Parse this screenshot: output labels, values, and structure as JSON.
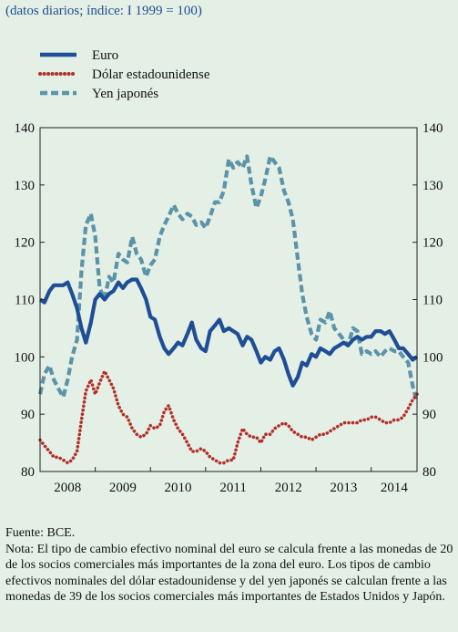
{
  "subtitle": "(datos diarios; índice: I 1999 = 100)",
  "source": "Fuente: BCE.",
  "note": "Nota: El tipo de cambio efectivo nominal del euro se calcula frente a las monedas de 20 de los socios comerciales más importantes de la zona del euro. Los tipos de cambio efectivos nominales del dólar estadounidense y del yen japonés se calculan frente a las monedas de 39 de los socios comerciales más importantes de Estados Unidos y Japón.",
  "colors": {
    "euro": "#1f4e96",
    "usd": "#b3302a",
    "yen": "#5b93a8",
    "background": "#e4efe6"
  },
  "chart_data": {
    "type": "line",
    "title": "",
    "ylim": [
      80,
      140
    ],
    "yticks": [
      80,
      90,
      100,
      110,
      120,
      130,
      140
    ],
    "xlim": [
      2008.0,
      2014.83
    ],
    "xtick_labels": [
      "2008",
      "2009",
      "2010",
      "2011",
      "2012",
      "2013",
      "2014"
    ],
    "grid": false,
    "legend_position": "top-left",
    "series": [
      {
        "name": "Euro",
        "style": "solid",
        "color": "#1f4e96",
        "x": [
          2008.0,
          2008.08,
          2008.17,
          2008.25,
          2008.33,
          2008.42,
          2008.5,
          2008.58,
          2008.67,
          2008.75,
          2008.83,
          2008.92,
          2009.0,
          2009.08,
          2009.17,
          2009.25,
          2009.33,
          2009.42,
          2009.5,
          2009.58,
          2009.67,
          2009.75,
          2009.83,
          2009.92,
          2010.0,
          2010.08,
          2010.17,
          2010.25,
          2010.33,
          2010.42,
          2010.5,
          2010.58,
          2010.67,
          2010.75,
          2010.83,
          2010.92,
          2011.0,
          2011.08,
          2011.17,
          2011.25,
          2011.33,
          2011.42,
          2011.5,
          2011.58,
          2011.67,
          2011.75,
          2011.83,
          2011.92,
          2012.0,
          2012.08,
          2012.17,
          2012.25,
          2012.33,
          2012.42,
          2012.5,
          2012.58,
          2012.67,
          2012.75,
          2012.83,
          2012.92,
          2013.0,
          2013.08,
          2013.17,
          2013.25,
          2013.33,
          2013.42,
          2013.5,
          2013.58,
          2013.67,
          2013.75,
          2013.83,
          2013.92,
          2014.0,
          2014.08,
          2014.17,
          2014.25,
          2014.33,
          2014.42,
          2014.5,
          2014.58,
          2014.67,
          2014.75,
          2014.83
        ],
        "y": [
          110,
          109.5,
          111.5,
          112.5,
          112.5,
          112.5,
          113,
          111,
          108.5,
          105,
          102.5,
          106,
          110,
          111,
          110,
          111,
          111.5,
          113,
          112,
          113,
          113.5,
          113.5,
          112,
          110,
          107,
          106.5,
          103.5,
          101.5,
          100.5,
          101.5,
          102.5,
          102,
          104,
          106,
          103,
          101.5,
          101,
          104.5,
          105.5,
          106.5,
          104.5,
          105,
          104.5,
          104,
          102,
          103.5,
          103,
          101,
          99,
          100,
          99.5,
          101,
          101.5,
          99.5,
          97,
          95,
          96.5,
          99,
          98.5,
          100.5,
          100,
          101.5,
          101,
          100.5,
          101.5,
          102,
          102.5,
          102,
          103,
          103.5,
          103,
          103.5,
          103.5,
          104.5,
          104.5,
          104,
          104.5,
          103,
          101.5,
          101.5,
          100.5,
          99.5,
          100
        ]
      },
      {
        "name": "Dólar estadounidense",
        "style": "dotted",
        "color": "#b3302a",
        "x": [
          2008.0,
          2008.08,
          2008.17,
          2008.25,
          2008.33,
          2008.42,
          2008.5,
          2008.58,
          2008.67,
          2008.75,
          2008.83,
          2008.92,
          2009.0,
          2009.08,
          2009.17,
          2009.25,
          2009.33,
          2009.42,
          2009.5,
          2009.58,
          2009.67,
          2009.75,
          2009.83,
          2009.92,
          2010.0,
          2010.08,
          2010.17,
          2010.25,
          2010.33,
          2010.42,
          2010.5,
          2010.58,
          2010.67,
          2010.75,
          2010.83,
          2010.92,
          2011.0,
          2011.08,
          2011.17,
          2011.25,
          2011.33,
          2011.42,
          2011.5,
          2011.58,
          2011.67,
          2011.75,
          2011.83,
          2011.92,
          2012.0,
          2012.08,
          2012.17,
          2012.25,
          2012.33,
          2012.42,
          2012.5,
          2012.58,
          2012.67,
          2012.75,
          2012.83,
          2012.92,
          2013.0,
          2013.08,
          2013.17,
          2013.25,
          2013.33,
          2013.42,
          2013.5,
          2013.58,
          2013.67,
          2013.75,
          2013.83,
          2013.92,
          2014.0,
          2014.08,
          2014.17,
          2014.25,
          2014.33,
          2014.42,
          2014.5,
          2014.58,
          2014.67,
          2014.75,
          2014.83
        ],
        "y": [
          85.5,
          84.5,
          83.5,
          82.5,
          82.5,
          82,
          81.5,
          82,
          83.5,
          89,
          94,
          96,
          93.5,
          95.5,
          97.5,
          96,
          94.5,
          91.5,
          90,
          89.5,
          87.5,
          86.5,
          86,
          86.5,
          88,
          87.5,
          88,
          90.5,
          91.5,
          89,
          87.5,
          86.5,
          85,
          83.5,
          83.5,
          84,
          83.5,
          82.5,
          82,
          81.5,
          81.5,
          82,
          82,
          85,
          87.5,
          86.5,
          86,
          86,
          85,
          86.5,
          86.5,
          87.5,
          88,
          88.5,
          88,
          87,
          86.5,
          86,
          86,
          85.5,
          86,
          86.5,
          86.5,
          87,
          87.5,
          88,
          88.5,
          88.5,
          88.5,
          88.5,
          89,
          89,
          89.5,
          89.5,
          89,
          88.5,
          88.5,
          89,
          89,
          89.5,
          91,
          92.5,
          93.5
        ]
      },
      {
        "name": "Yen japonés",
        "style": "dashed",
        "color": "#5b93a8",
        "x": [
          2008.0,
          2008.08,
          2008.17,
          2008.25,
          2008.33,
          2008.42,
          2008.5,
          2008.58,
          2008.67,
          2008.75,
          2008.83,
          2008.92,
          2009.0,
          2009.08,
          2009.17,
          2009.25,
          2009.33,
          2009.42,
          2009.5,
          2009.58,
          2009.67,
          2009.75,
          2009.83,
          2009.92,
          2010.0,
          2010.08,
          2010.17,
          2010.25,
          2010.33,
          2010.42,
          2010.5,
          2010.58,
          2010.67,
          2010.75,
          2010.83,
          2010.92,
          2011.0,
          2011.08,
          2011.17,
          2011.25,
          2011.33,
          2011.42,
          2011.5,
          2011.58,
          2011.67,
          2011.75,
          2011.83,
          2011.92,
          2012.0,
          2012.08,
          2012.17,
          2012.25,
          2012.33,
          2012.42,
          2012.5,
          2012.58,
          2012.67,
          2012.75,
          2012.83,
          2012.92,
          2013.0,
          2013.08,
          2013.17,
          2013.25,
          2013.33,
          2013.42,
          2013.5,
          2013.58,
          2013.67,
          2013.75,
          2013.83,
          2013.92,
          2014.0,
          2014.08,
          2014.17,
          2014.25,
          2014.33,
          2014.42,
          2014.5,
          2014.58,
          2014.67,
          2014.75,
          2014.83
        ],
        "y": [
          93.5,
          97,
          98.5,
          96,
          94.5,
          93,
          96,
          100,
          103,
          115,
          123,
          125,
          121,
          112,
          110,
          114,
          113,
          118,
          117,
          116.5,
          121,
          118,
          117,
          114,
          116,
          117,
          121,
          123,
          124.5,
          126.5,
          125,
          124,
          125,
          124.5,
          123,
          123.5,
          122.5,
          124.5,
          127,
          127,
          129,
          134.5,
          133,
          134,
          133,
          135,
          130,
          126,
          128,
          131,
          135,
          134,
          133,
          129,
          127,
          124,
          117,
          111,
          107,
          104,
          103,
          106.5,
          106,
          108,
          105,
          104,
          103,
          102,
          105,
          104.5,
          100.5,
          101,
          100.5,
          101,
          100,
          101,
          101.5,
          101,
          101,
          100,
          99,
          95,
          92
        ]
      }
    ]
  }
}
